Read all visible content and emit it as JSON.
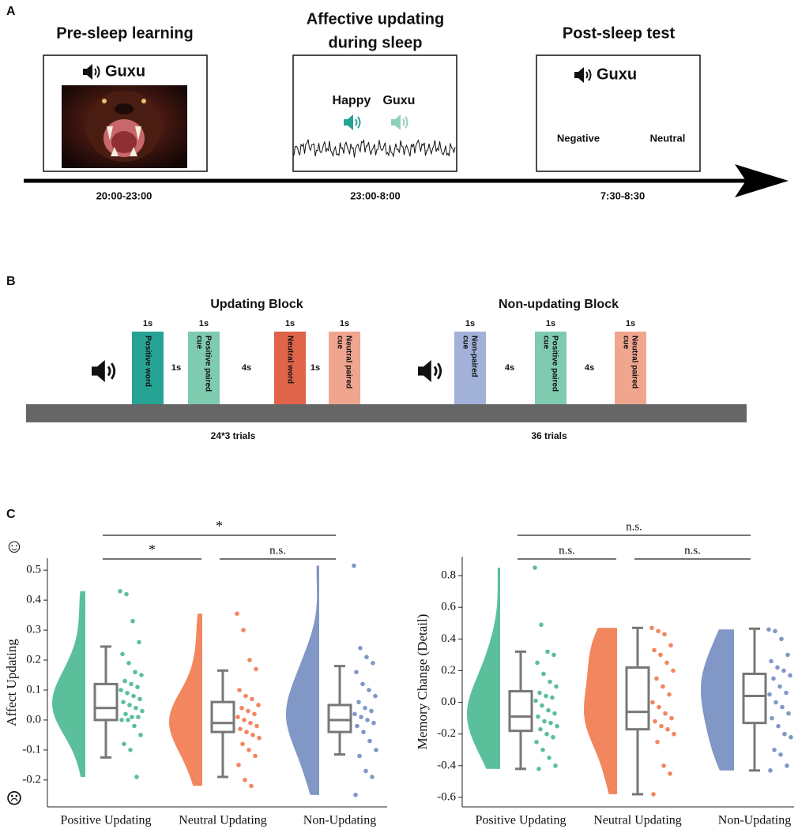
{
  "panel_a": {
    "label": "A",
    "stages": [
      {
        "title": [
          "Pre-sleep learning"
        ],
        "word": "Guxu",
        "time": "20:00-23:00"
      },
      {
        "title": [
          "Affective updating",
          "during sleep"
        ],
        "cues": [
          "Happy",
          "Guxu"
        ],
        "time": "23:00-8:00"
      },
      {
        "title": [
          "Post-sleep test"
        ],
        "word": "Guxu",
        "options": [
          "Negative",
          "Neutral"
        ],
        "time": "7:30-8:30"
      }
    ]
  },
  "panel_b": {
    "label": "B",
    "blocks": [
      {
        "title": "Updating Block",
        "trials": "24*3 trials",
        "gaps": [
          "1s",
          "4s",
          "1s"
        ],
        "items": [
          {
            "duration": "1s",
            "text": [
              "Positive word"
            ],
            "color": "#27a394"
          },
          {
            "duration": "1s",
            "text": [
              "Positive paired",
              "cue"
            ],
            "color": "#7fcbb0"
          },
          {
            "duration": "1s",
            "text": [
              "Neutral word"
            ],
            "color": "#e0644a"
          },
          {
            "duration": "1s",
            "text": [
              "Neutral paired",
              "cue"
            ],
            "color": "#f0a58f"
          }
        ]
      },
      {
        "title": "Non-updating Block",
        "trials": "36 trials",
        "gaps": [
          "4s",
          "4s"
        ],
        "items": [
          {
            "duration": "1s",
            "text": [
              "Non-paired",
              "cue"
            ],
            "color": "#a1b1d8"
          },
          {
            "duration": "1s",
            "text": [
              "Positive paired",
              "cue"
            ],
            "color": "#7fcbb0"
          },
          {
            "duration": "1s",
            "text": [
              "Neutral paired",
              "cue"
            ],
            "color": "#f0a58f"
          }
        ]
      }
    ]
  },
  "panel_c": {
    "label": "C"
  },
  "chart_data": [
    {
      "type": "raincloud",
      "ylabel": "Affect Updating",
      "icons": [
        "☺",
        "☹"
      ],
      "categories": [
        "Positive Updating",
        "Neutral Updating",
        "Non-Updating"
      ],
      "ylim": [
        -0.29,
        0.54
      ],
      "yticks": [
        0.5,
        0.4,
        0.3,
        0.2,
        0.1,
        {
          "value": 0,
          "label": "0.0"
        },
        -0.1,
        -0.2
      ],
      "groups": [
        {
          "color": "#5bbf9c",
          "box": [
            -0.125,
            0.0,
            0.04,
            0.12,
            0.245
          ],
          "points": [
            0.43,
            0.42,
            0.33,
            0.26,
            0.22,
            0.19,
            0.16,
            0.15,
            0.13,
            0.12,
            0.11,
            0.1,
            0.09,
            0.08,
            0.07,
            0.06,
            0.05,
            0.04,
            0.03,
            0.02,
            0.01,
            0.01,
            0.0,
            0.0,
            -0.02,
            -0.05,
            -0.08,
            -0.1,
            -0.19
          ]
        },
        {
          "color": "#f2865f",
          "box": [
            -0.19,
            -0.04,
            -0.01,
            0.06,
            0.165
          ],
          "points": [
            0.355,
            0.3,
            0.2,
            0.17,
            0.1,
            0.08,
            0.07,
            0.05,
            0.04,
            0.03,
            0.02,
            0.01,
            0.0,
            -0.01,
            -0.02,
            -0.03,
            -0.04,
            -0.05,
            -0.06,
            -0.08,
            -0.1,
            -0.12,
            -0.15,
            -0.2,
            -0.22
          ]
        },
        {
          "color": "#8197c6",
          "box": [
            -0.115,
            -0.04,
            0.0,
            0.05,
            0.18
          ],
          "points": [
            0.515,
            0.24,
            0.21,
            0.19,
            0.16,
            0.12,
            0.1,
            0.08,
            0.06,
            0.04,
            0.03,
            0.02,
            0.01,
            0.0,
            -0.01,
            -0.02,
            -0.04,
            -0.07,
            -0.1,
            -0.12,
            -0.17,
            -0.19,
            -0.25
          ]
        }
      ],
      "brackets": [
        {
          "from": 0,
          "to": 2,
          "label": "*"
        },
        {
          "from": 0,
          "to": 1,
          "label": "*"
        },
        {
          "from": 1,
          "to": 2,
          "label": "n.s."
        }
      ]
    },
    {
      "type": "raincloud",
      "ylabel": "Memory Change (Detail)",
      "categories": [
        "Positive Updating",
        "Neutral Updating",
        "Non-Updating"
      ],
      "ylim": [
        -0.66,
        0.92
      ],
      "yticks": [
        0.8,
        0.6,
        0.4,
        0.2,
        {
          "value": 0,
          "label": "0.0"
        },
        -0.2,
        -0.4,
        -0.6
      ],
      "groups": [
        {
          "color": "#5bbf9c",
          "box": [
            -0.42,
            -0.18,
            -0.09,
            0.07,
            0.32
          ],
          "points": [
            0.85,
            0.49,
            0.32,
            0.3,
            0.25,
            0.18,
            0.13,
            0.1,
            0.06,
            0.04,
            0.03,
            0.01,
            -0.02,
            -0.05,
            -0.07,
            -0.09,
            -0.12,
            -0.13,
            -0.15,
            -0.17,
            -0.2,
            -0.22,
            -0.25,
            -0.3,
            -0.35,
            -0.4,
            -0.42
          ]
        },
        {
          "color": "#f2865f",
          "box": [
            -0.58,
            -0.17,
            -0.06,
            0.22,
            0.47
          ],
          "points": [
            0.47,
            0.45,
            0.43,
            0.36,
            0.33,
            0.3,
            0.25,
            0.2,
            0.15,
            0.1,
            0.05,
            0.0,
            -0.03,
            -0.07,
            -0.1,
            -0.12,
            -0.15,
            -0.17,
            -0.2,
            -0.25,
            -0.4,
            -0.45,
            -0.58
          ]
        },
        {
          "color": "#8197c6",
          "box": [
            -0.43,
            -0.13,
            0.04,
            0.18,
            0.465
          ],
          "points": [
            0.46,
            0.45,
            0.4,
            0.3,
            0.26,
            0.22,
            0.2,
            0.17,
            0.15,
            0.1,
            0.06,
            0.05,
            0.0,
            -0.03,
            -0.07,
            -0.1,
            -0.15,
            -0.2,
            -0.22,
            -0.3,
            -0.33,
            -0.4,
            -0.43
          ]
        }
      ],
      "brackets": [
        {
          "from": 0,
          "to": 2,
          "label": "n.s."
        },
        {
          "from": 0,
          "to": 1,
          "label": "n.s."
        },
        {
          "from": 1,
          "to": 2,
          "label": "n.s."
        }
      ]
    }
  ]
}
